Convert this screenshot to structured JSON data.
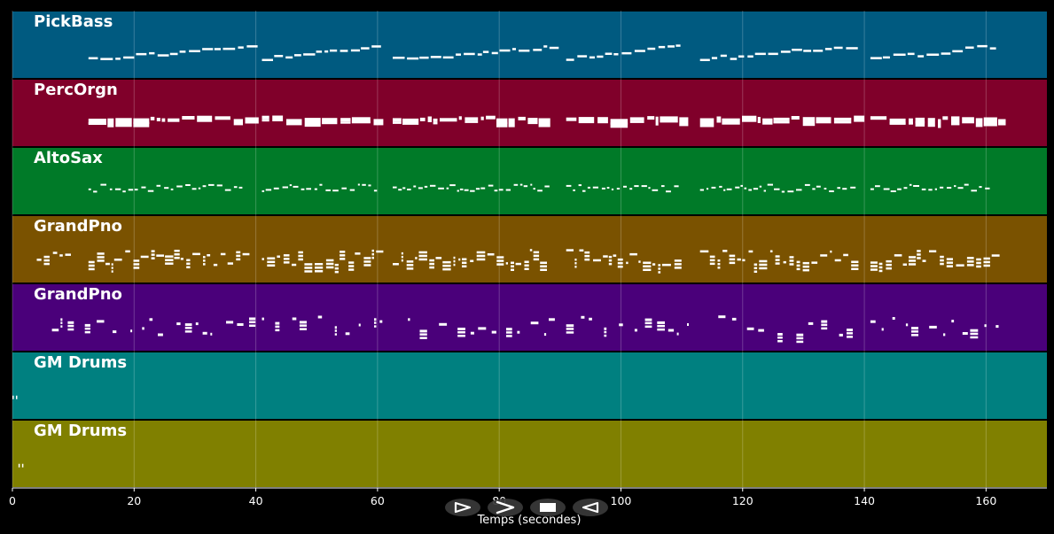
{
  "chart_data": {
    "type": "piano-roll",
    "xlabel": "Temps (secondes)",
    "xlim": [
      0,
      170
    ],
    "x_ticks": [
      0,
      20,
      40,
      60,
      80,
      100,
      120,
      140,
      160
    ],
    "grid": true,
    "background": "#000000",
    "tracks": [
      {
        "name": "PickBass",
        "color": "#005a80",
        "note_style": "bass-line",
        "sections": [
          [
            12.5,
            39.5
          ],
          [
            41,
            60
          ],
          [
            62.5,
            89
          ],
          [
            91,
            110
          ],
          [
            113,
            139
          ],
          [
            141,
            161
          ]
        ]
      },
      {
        "name": "PercOrgn",
        "color": "#80002a",
        "note_style": "block-chords",
        "sections": [
          [
            12.5,
            39
          ],
          [
            41,
            61
          ],
          [
            62.5,
            88
          ],
          [
            91,
            111
          ],
          [
            113,
            139
          ],
          [
            141,
            162
          ]
        ]
      },
      {
        "name": "AltoSax",
        "color": "#007a28",
        "note_style": "melody-dashes",
        "sections": [
          [
            12.5,
            38
          ],
          [
            41,
            60
          ],
          [
            62.5,
            88
          ],
          [
            91,
            109
          ],
          [
            113,
            138
          ],
          [
            141,
            160
          ]
        ]
      },
      {
        "name": "GrandPno",
        "color": "#7a5200",
        "note_style": "dense-chords",
        "sections": [
          [
            4,
            10
          ],
          [
            12.5,
            39
          ],
          [
            41,
            60
          ],
          [
            62.5,
            88
          ],
          [
            91,
            110
          ],
          [
            113,
            139
          ],
          [
            141,
            161
          ]
        ]
      },
      {
        "name": "GrandPno",
        "color": "#4a007a",
        "note_style": "sparse-chords",
        "sections": [
          [
            6.5,
            39.5
          ],
          [
            41,
            60.5
          ],
          [
            65,
            89
          ],
          [
            91,
            111
          ],
          [
            116,
            140
          ],
          [
            141,
            162
          ]
        ]
      },
      {
        "name": "GM Drums",
        "color": "#008080",
        "note_style": "drum-hits",
        "sections": [
          [
            0,
            1
          ]
        ]
      },
      {
        "name": "GM Drums",
        "color": "#808000",
        "note_style": "drum-hits",
        "sections": [
          [
            1,
            2.2
          ]
        ]
      }
    ]
  },
  "transport": {
    "buttons": [
      {
        "name": "play-icon",
        "glyph": "play-outline"
      },
      {
        "name": "fast-forward-icon",
        "glyph": "chevron-right"
      },
      {
        "name": "stop-icon",
        "glyph": "stop-square"
      },
      {
        "name": "rewind-icon",
        "glyph": "play-outline-left"
      }
    ]
  }
}
